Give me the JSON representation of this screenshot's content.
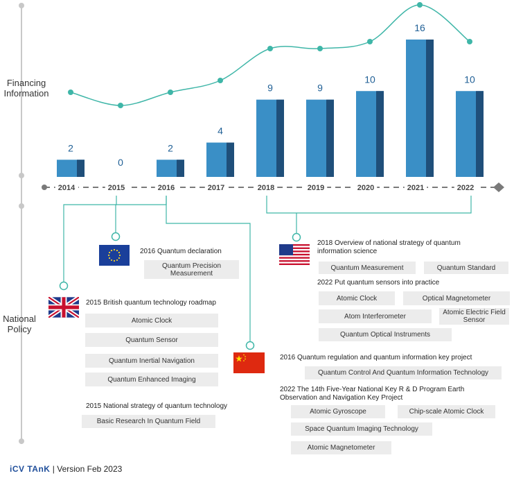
{
  "side_labels": {
    "financing": "Financing Information",
    "policy": "National Policy"
  },
  "chart_data": {
    "type": "bar",
    "categories": [
      "2014",
      "2015",
      "2016",
      "2017",
      "2018",
      "2019",
      "2020",
      "2021",
      "2022"
    ],
    "values": [
      2,
      0,
      2,
      4,
      9,
      9,
      10,
      16,
      10
    ],
    "trend_line": true,
    "title": "",
    "xlabel": "",
    "ylabel": "",
    "ylim": [
      0,
      16
    ]
  },
  "colors": {
    "bar": "#3a8fc6",
    "bar_dark": "#1f4f7a",
    "line": "#3fb6a8",
    "axis": "#7a7a7a",
    "box": "#ececec",
    "connector": "#3fb6a8"
  },
  "policies": {
    "eu": {
      "heading": "2016 Quantum declaration",
      "items": [
        "Quantum Precision Measurement"
      ]
    },
    "uk": {
      "heading1": "2015 British quantum technology roadmap",
      "items1": [
        "Atomic Clock",
        "Quantum Sensor",
        "Quantum Inertial Navigation",
        "Quantum Enhanced Imaging"
      ],
      "heading2": "2015 National strategy of quantum technology",
      "items2": [
        "Basic Research In Quantum Field"
      ]
    },
    "us": {
      "heading1": "2018 Overview of national strategy of quantum information science",
      "items1": [
        "Quantum Measurement",
        "Quantum Standard"
      ],
      "heading2": "2022 Put quantum sensors into practice",
      "items2": [
        "Atomic Clock",
        "Optical Magnetometer",
        "Atom Interferometer",
        "Atomic Electric Field Sensor",
        "Quantum Optical Instruments"
      ]
    },
    "cn": {
      "heading1": "2016 Quantum regulation and quantum information  key project",
      "items1": [
        "Quantum Control And Quantum Information Technology"
      ],
      "heading2": "2022 The  14th Five-Year  National Key R & D Program  Earth Observation and Navigation  Key Project",
      "items2": [
        "Atomic Gyroscope",
        "Chip-scale Atomic Clock",
        "Space Quantum Imaging Technology",
        "Atomic Magnetometer"
      ]
    }
  },
  "footer": {
    "brand": "iCV TAnK",
    "version": "| Version Feb 2023"
  }
}
